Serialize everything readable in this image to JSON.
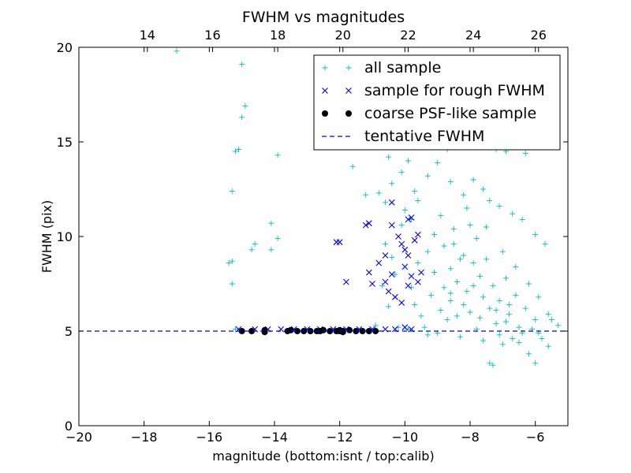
{
  "chart_data": {
    "type": "scatter",
    "title": "FWHM vs magnitudes",
    "xlabel": "magnitude (bottom:isnt / top:calib)",
    "ylabel": "FWHM (pix)",
    "xlim": [
      -20,
      -5
    ],
    "ylim": [
      0,
      20
    ],
    "x_ticks": [
      "−20",
      "−18",
      "−16",
      "−14",
      "−12",
      "−10",
      "−8",
      "−6"
    ],
    "y_ticks": [
      "0",
      "5",
      "10",
      "15",
      "20"
    ],
    "top_axis": {
      "ticks": [
        "14",
        "16",
        "18",
        "20",
        "22",
        "24",
        "26"
      ],
      "tick_values": [
        14,
        16,
        18,
        20,
        22,
        24,
        26
      ],
      "offset_to_bottom": 31.9
    },
    "grid": false,
    "legend_position": "top-right",
    "legend": [
      "all sample",
      "sample for rough FWHM",
      "coarse PSF-like sample",
      "tentative FWHM"
    ],
    "tentative_fwhm": 5.0,
    "series": [
      {
        "name": "all sample",
        "marker": "plus",
        "color": "#00bfbf",
        "points": [
          [
            -17.0,
            19.8
          ],
          [
            -15.0,
            19.1
          ],
          [
            -14.9,
            16.9
          ],
          [
            -15.0,
            16.3
          ],
          [
            -15.2,
            14.5
          ],
          [
            -15.1,
            14.6
          ],
          [
            -13.9,
            14.3
          ],
          [
            -15.3,
            12.4
          ],
          [
            -14.1,
            10.7
          ],
          [
            -13.9,
            9.9
          ],
          [
            -14.6,
            9.6
          ],
          [
            -14.7,
            9.3
          ],
          [
            -14.1,
            9.3
          ],
          [
            -15.4,
            8.6
          ],
          [
            -15.3,
            8.7
          ],
          [
            -15.3,
            7.5
          ],
          [
            -15.2,
            5.1
          ],
          [
            -11.6,
            13.7
          ],
          [
            -11.2,
            12.2
          ],
          [
            -10.4,
            12.8
          ],
          [
            -10.1,
            13.4
          ],
          [
            -10.0,
            11.4
          ],
          [
            -10.6,
            11.8
          ],
          [
            -10.8,
            12.3
          ],
          [
            -10.5,
            14.2
          ],
          [
            -9.9,
            14.0
          ],
          [
            -9.7,
            12.4
          ],
          [
            -9.6,
            11.9
          ],
          [
            -9.3,
            13.2
          ],
          [
            -9.0,
            13.9
          ],
          [
            -8.7,
            14.6
          ],
          [
            -8.3,
            14.8
          ],
          [
            -7.6,
            15.3
          ],
          [
            -7.2,
            14.6
          ],
          [
            -6.9,
            14.5
          ],
          [
            -6.3,
            14.4
          ],
          [
            -10.1,
            10.6
          ],
          [
            -9.8,
            10.9
          ],
          [
            -8.6,
            12.9
          ],
          [
            -8.2,
            12.2
          ],
          [
            -7.9,
            13.0
          ],
          [
            -7.6,
            12.5
          ],
          [
            -7.4,
            11.9
          ],
          [
            -7.1,
            11.6
          ],
          [
            -6.7,
            11.2
          ],
          [
            -6.4,
            10.9
          ],
          [
            -6.0,
            10.1
          ],
          [
            -5.7,
            9.6
          ],
          [
            -10.6,
            9.6
          ],
          [
            -10.4,
            8.9
          ],
          [
            -10.3,
            8.0
          ],
          [
            -10.7,
            7.4
          ],
          [
            -10.5,
            6.3
          ],
          [
            -10.9,
            5.3
          ],
          [
            -9.8,
            7.3
          ],
          [
            -9.7,
            6.4
          ],
          [
            -9.5,
            5.8
          ],
          [
            -9.2,
            6.9
          ],
          [
            -9.3,
            9.2
          ],
          [
            -9.1,
            10.1
          ],
          [
            -8.8,
            9.5
          ],
          [
            -8.9,
            11.1
          ],
          [
            -8.5,
            10.4
          ],
          [
            -8.6,
            8.3
          ],
          [
            -8.4,
            7.6
          ],
          [
            -8.2,
            9.0
          ],
          [
            -8.0,
            10.6
          ],
          [
            -7.8,
            9.9
          ],
          [
            -7.9,
            8.6
          ],
          [
            -7.7,
            7.9
          ],
          [
            -7.5,
            8.8
          ],
          [
            -7.3,
            7.4
          ],
          [
            -7.1,
            6.6
          ],
          [
            -6.9,
            7.8
          ],
          [
            -6.6,
            6.9
          ],
          [
            -6.3,
            6.2
          ],
          [
            -6.0,
            5.6
          ],
          [
            -5.6,
            5.9
          ],
          [
            -5.3,
            5.3
          ],
          [
            -8.7,
            5.6
          ],
          [
            -8.3,
            4.7
          ],
          [
            -7.6,
            4.5
          ],
          [
            -7.0,
            4.3
          ],
          [
            -6.5,
            4.4
          ],
          [
            -6.2,
            3.8
          ],
          [
            -6.0,
            3.3
          ],
          [
            -7.4,
            3.3
          ],
          [
            -7.3,
            3.2
          ],
          [
            -5.8,
            4.6
          ],
          [
            -5.6,
            4.2
          ],
          [
            -8.0,
            6.0
          ],
          [
            -8.1,
            7.1
          ],
          [
            -7.2,
            5.4
          ],
          [
            -6.8,
            5.9
          ],
          [
            -7.4,
            6.2
          ],
          [
            -6.5,
            5.2
          ],
          [
            -8.9,
            6.1
          ],
          [
            -9.0,
            4.9
          ],
          [
            -9.4,
            5.2
          ],
          [
            -8.6,
            6.6
          ],
          [
            -9.1,
            8.1
          ],
          [
            -9.6,
            8.6
          ],
          [
            -8.8,
            7.3
          ],
          [
            -8.4,
            5.8
          ],
          [
            -7.8,
            5.1
          ],
          [
            -7.1,
            4.8
          ],
          [
            -6.7,
            4.6
          ],
          [
            -6.4,
            4.9
          ],
          [
            -6.1,
            5.1
          ],
          [
            -5.9,
            4.9
          ],
          [
            -9.9,
            5.1
          ],
          [
            -10.2,
            5.2
          ],
          [
            -9.3,
            4.8
          ],
          [
            -7.5,
            10.5
          ],
          [
            -8.1,
            11.5
          ],
          [
            -7.0,
            9.2
          ],
          [
            -6.6,
            8.4
          ],
          [
            -6.2,
            7.5
          ],
          [
            -5.9,
            6.8
          ],
          [
            -5.5,
            5.6
          ],
          [
            -8.5,
            9.6
          ],
          [
            -8.3,
            8.8
          ],
          [
            -7.9,
            7.4
          ],
          [
            -7.6,
            6.8
          ],
          [
            -7.2,
            6.1
          ],
          [
            -6.8,
            6.4
          ],
          [
            -6.9,
            5.5
          ],
          [
            -7.7,
            5.7
          ],
          [
            -8.2,
            6.4
          ],
          [
            -8.6,
            7.0
          ]
        ]
      },
      {
        "name": "sample for rough FWHM",
        "marker": "x",
        "color": "#0000ff",
        "points": [
          [
            -15.1,
            5.1
          ],
          [
            -14.6,
            5.1
          ],
          [
            -14.2,
            5.1
          ],
          [
            -13.8,
            5.1
          ],
          [
            -13.4,
            5.1
          ],
          [
            -13.0,
            5.1
          ],
          [
            -12.6,
            5.1
          ],
          [
            -12.2,
            5.1
          ],
          [
            -11.8,
            5.1
          ],
          [
            -11.4,
            5.1
          ],
          [
            -11.0,
            5.1
          ],
          [
            -10.6,
            5.1
          ],
          [
            -10.3,
            5.1
          ],
          [
            -10.0,
            5.2
          ],
          [
            -9.8,
            5.1
          ],
          [
            -12.1,
            9.7
          ],
          [
            -12.0,
            9.7
          ],
          [
            -11.8,
            7.6
          ],
          [
            -11.2,
            10.6
          ],
          [
            -11.1,
            10.7
          ],
          [
            -11.1,
            8.1
          ],
          [
            -11.0,
            7.5
          ],
          [
            -10.8,
            8.6
          ],
          [
            -10.6,
            7.6
          ],
          [
            -10.5,
            7.1
          ],
          [
            -10.6,
            9.0
          ],
          [
            -10.4,
            10.6
          ],
          [
            -10.4,
            8.0
          ],
          [
            -10.4,
            11.8
          ],
          [
            -10.2,
            10.0
          ],
          [
            -10.1,
            9.6
          ],
          [
            -10.0,
            9.3
          ],
          [
            -10.0,
            8.4
          ],
          [
            -9.9,
            10.9
          ],
          [
            -9.8,
            11.0
          ],
          [
            -9.9,
            7.4
          ],
          [
            -9.8,
            7.9
          ],
          [
            -9.7,
            9.8
          ],
          [
            -9.6,
            10.1
          ],
          [
            -9.5,
            8.1
          ],
          [
            -10.1,
            6.5
          ],
          [
            -10.3,
            6.8
          ],
          [
            -9.6,
            7.6
          ],
          [
            -9.9,
            9.0
          ]
        ]
      },
      {
        "name": "coarse PSF-like sample",
        "marker": "dot",
        "color": "#000000",
        "points": [
          [
            -15.0,
            5.0
          ],
          [
            -14.7,
            5.0
          ],
          [
            -14.3,
            4.95
          ],
          [
            -14.3,
            5.05
          ],
          [
            -13.6,
            5.0
          ],
          [
            -13.5,
            5.05
          ],
          [
            -13.3,
            5.0
          ],
          [
            -13.1,
            5.0
          ],
          [
            -12.9,
            5.0
          ],
          [
            -12.7,
            5.0
          ],
          [
            -12.6,
            5.0
          ],
          [
            -12.5,
            5.05
          ],
          [
            -12.3,
            5.0
          ],
          [
            -12.1,
            5.0
          ],
          [
            -12.0,
            5.0
          ],
          [
            -11.9,
            5.0
          ],
          [
            -11.7,
            5.05
          ],
          [
            -11.5,
            5.0
          ],
          [
            -11.3,
            5.0
          ],
          [
            -11.1,
            5.0
          ],
          [
            -10.9,
            5.0
          ],
          [
            -11.9,
            4.95
          ],
          [
            -12.0,
            5.05
          ]
        ]
      }
    ]
  }
}
